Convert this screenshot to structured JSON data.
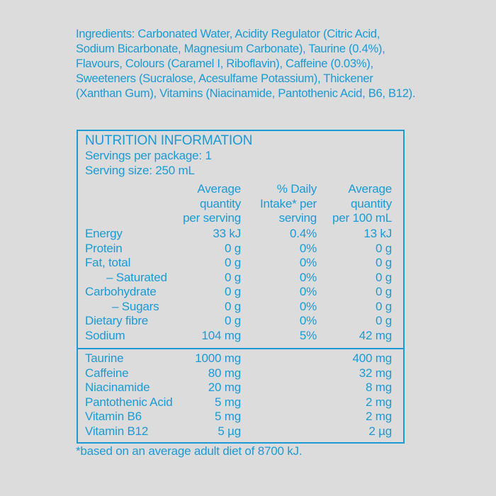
{
  "ingredients": "Ingredients: Carbonated Water, Acidity Regulator (Citric Acid, Sodium Bicarbonate, Magnesium Carbonate), Taurine (0.4%), Flavours, Colours (Caramel I, Riboflavin), Caffeine (0.03%), Sweeteners (Sucralose, Acesulfame Potassium), Thickener (Xanthan Gum), Vitamins (Niacinamide, Pantothenic Acid, B6, B12).",
  "panel": {
    "title": "NUTRITION INFORMATION",
    "servings_per_package": "Servings per package: 1",
    "serving_size": "Serving size: 250 mL",
    "headers": [
      [
        "Average",
        "quantity",
        "per serving"
      ],
      [
        "% Daily",
        "Intake* per",
        "serving"
      ],
      [
        "Average",
        "quantity",
        "per 100 mL"
      ]
    ],
    "rows": [
      [
        "Energy",
        "33 kJ",
        "0.4%",
        "13 kJ"
      ],
      [
        "Protein",
        "0 g",
        "0%",
        "0 g"
      ],
      [
        "Fat, total",
        "0 g",
        "0%",
        "0 g"
      ],
      [
        "– Saturated",
        "0 g",
        "0%",
        "0 g"
      ],
      [
        "Carbohydrate",
        "0 g",
        "0%",
        "0 g"
      ],
      [
        "– Sugars",
        "0 g",
        "0%",
        "0 g"
      ],
      [
        "Dietary fibre",
        "0 g",
        "0%",
        "0 g"
      ],
      [
        "Sodium",
        "104 mg",
        "5%",
        "42 mg"
      ]
    ],
    "extra_rows": [
      [
        "Taurine",
        "1000 mg",
        "400 mg"
      ],
      [
        "Caffeine",
        "80 mg",
        "32 mg"
      ],
      [
        "Niacinamide",
        "20 mg",
        "8 mg"
      ],
      [
        "Pantothenic Acid",
        "5 mg",
        "2 mg"
      ],
      [
        "Vitamin B6",
        "5 mg",
        "2 mg"
      ],
      [
        "Vitamin B12",
        "5 µg",
        "2 µg"
      ]
    ]
  },
  "footnote": "*based on an average adult diet of 8700 kJ.",
  "colors": {
    "text": "#1b9ad5",
    "background": "#dcdcdc"
  }
}
